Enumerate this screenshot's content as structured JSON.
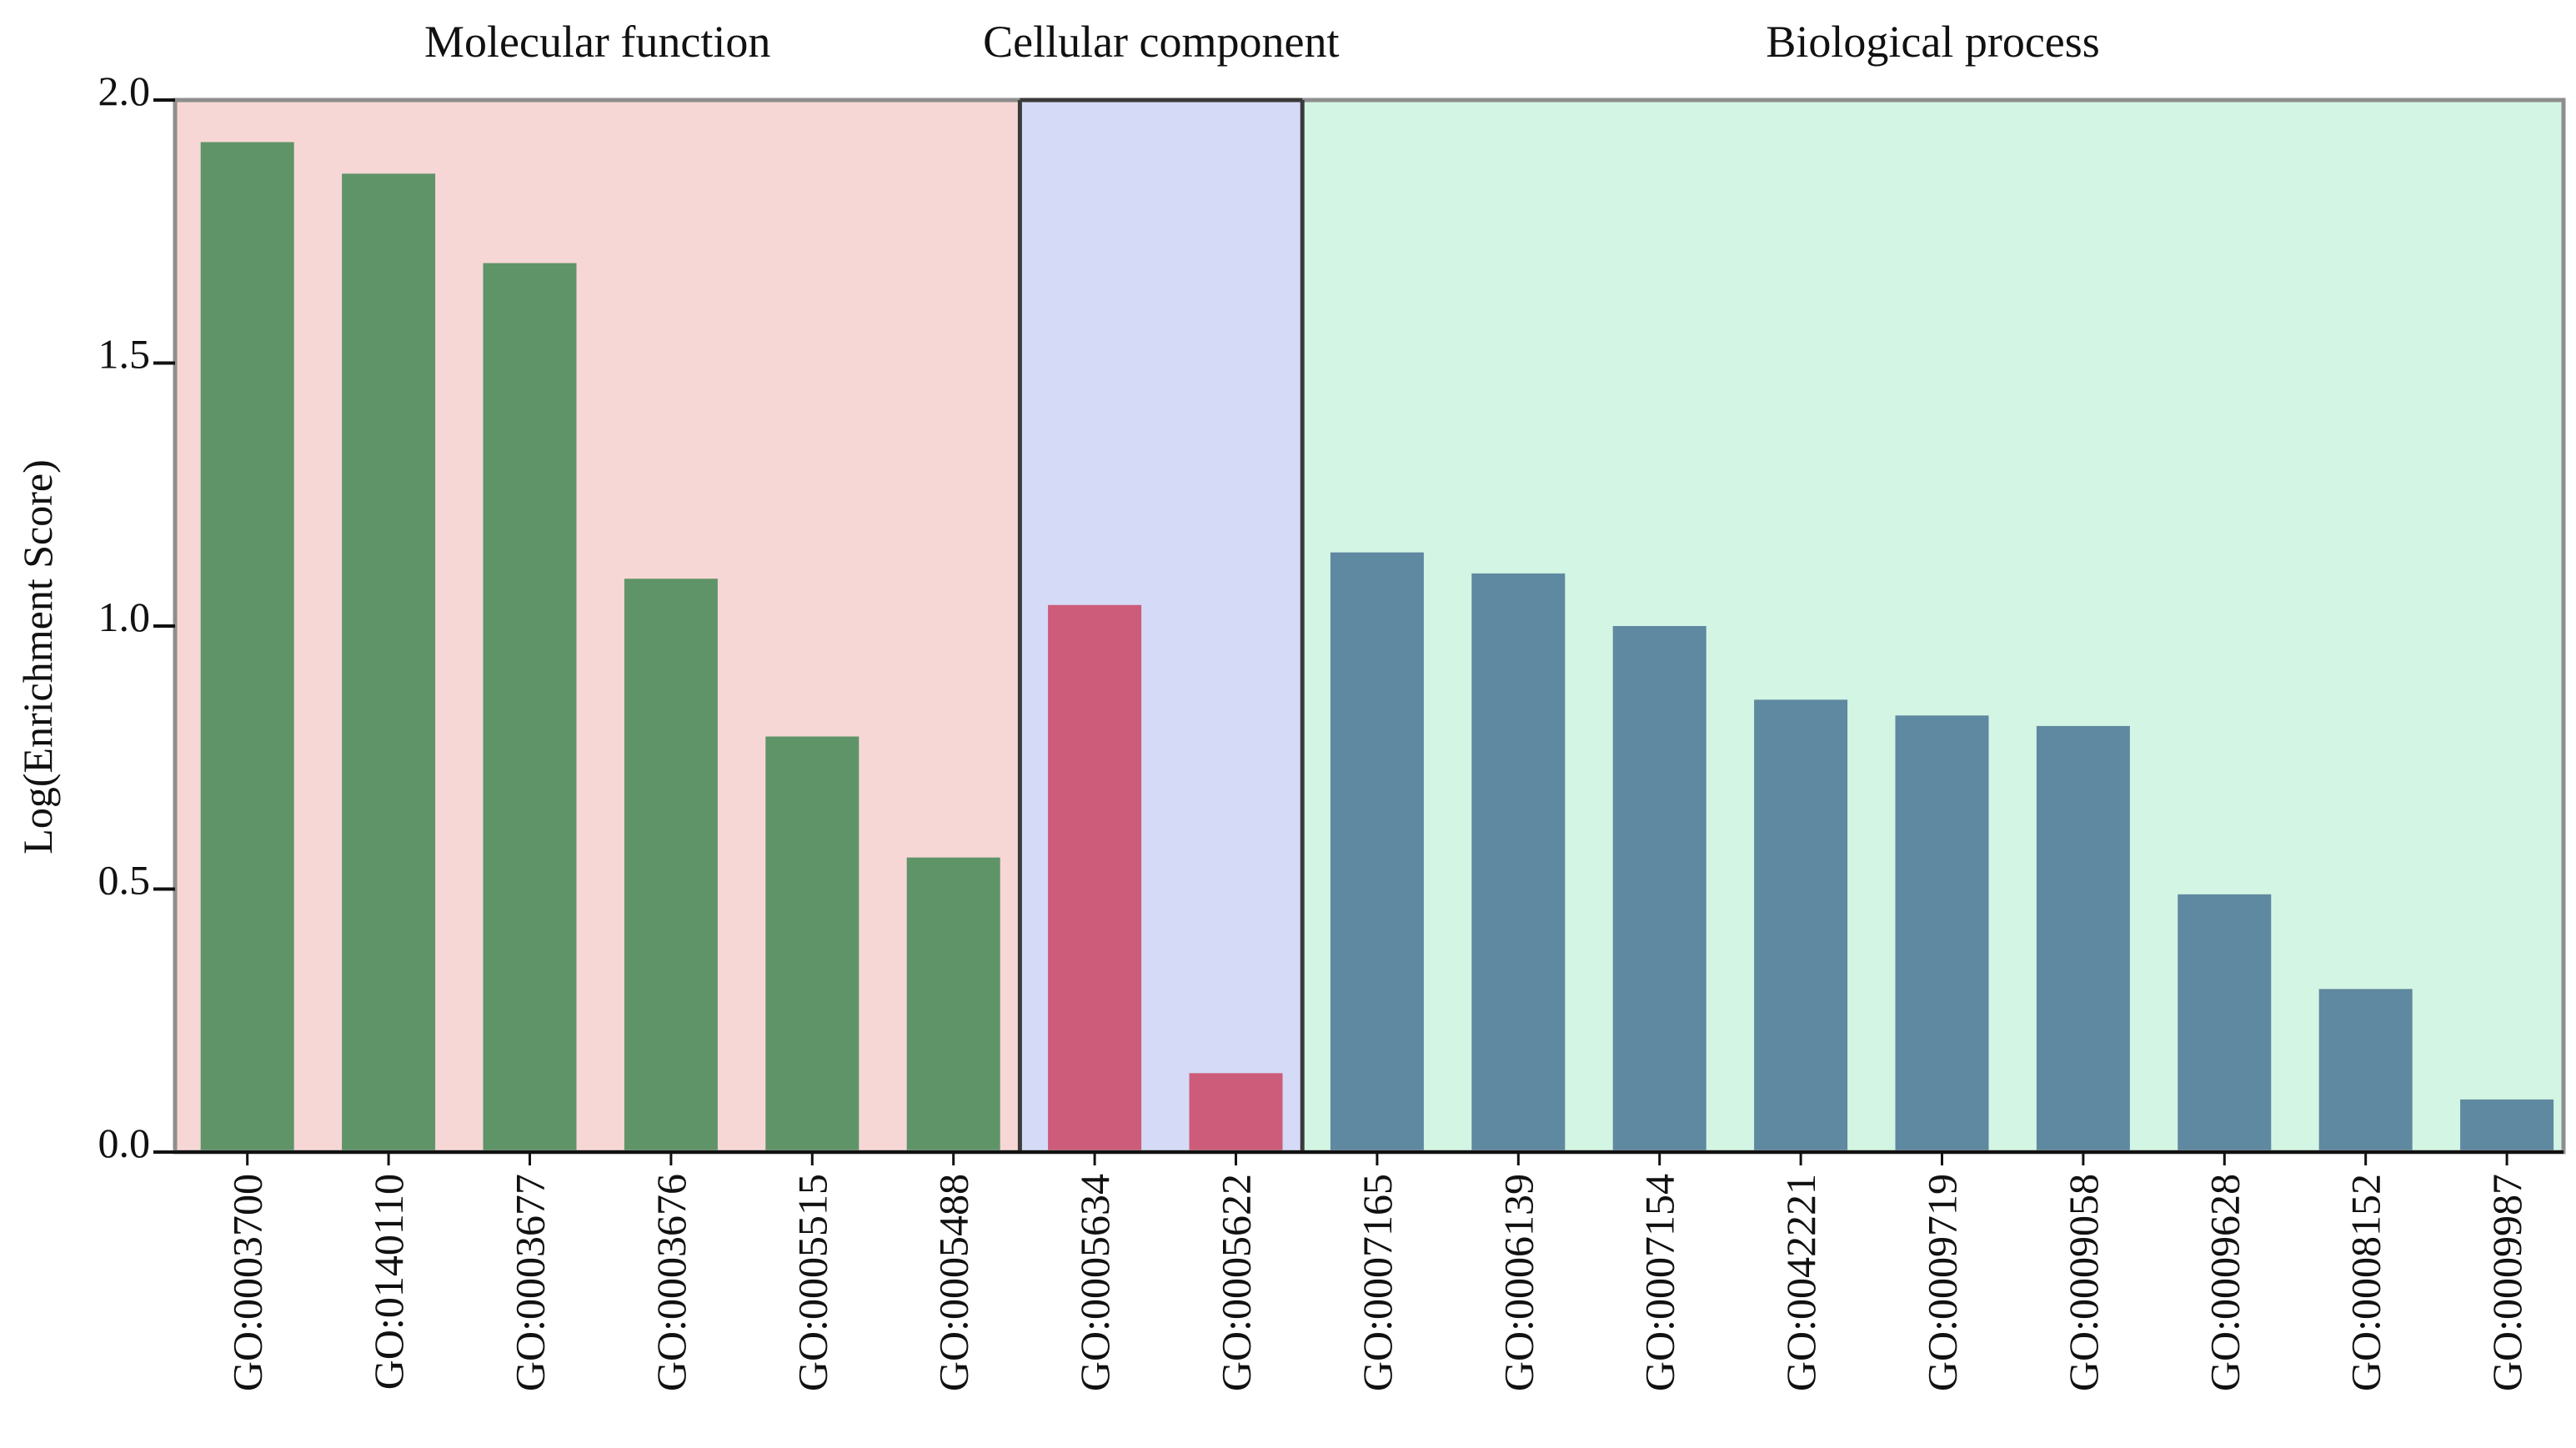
{
  "chart_data": {
    "type": "bar",
    "title": "",
    "xlabel": "",
    "ylabel": "Log(Enrichment Score)",
    "ylim": [
      0,
      2.0
    ],
    "yticks": [
      "0.0",
      "0.5",
      "1.0",
      "1.5",
      "2.0"
    ],
    "grid": false,
    "groups": [
      {
        "name": "Molecular function",
        "background": "#f7d7d5",
        "bar_color": "#5f9469",
        "categories": [
          "GO:0003700",
          "GO:0140110",
          "GO:0003677",
          "GO:0003676",
          "GO:0005515",
          "GO:0005488"
        ],
        "values": [
          1.92,
          1.86,
          1.69,
          1.09,
          0.79,
          0.56
        ]
      },
      {
        "name": "Cellular component",
        "background": "#d5dbf7",
        "bar_color": "#cc5c79",
        "categories": [
          "GO:0005634",
          "GO:0005622"
        ],
        "values": [
          1.04,
          0.15
        ]
      },
      {
        "name": "Biological process",
        "background": "#d3f5e3",
        "bar_color": "#5f88a1",
        "categories": [
          "GO:0007165",
          "GO:0006139",
          "GO:0007154",
          "GO:0042221",
          "GO:0009719",
          "GO:0009058",
          "GO:0009628",
          "GO:0008152",
          "GO:0009987"
        ],
        "values": [
          1.14,
          1.1,
          1.0,
          0.86,
          0.83,
          0.81,
          0.49,
          0.31,
          0.1
        ]
      }
    ]
  }
}
